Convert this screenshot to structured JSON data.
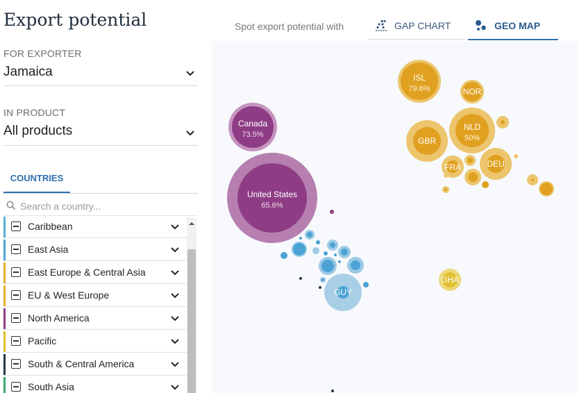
{
  "page": {
    "title": "Export potential"
  },
  "exporter": {
    "label": "FOR EXPORTER",
    "value": "Jamaica"
  },
  "product": {
    "label": "IN PRODUCT",
    "value": "All products"
  },
  "sidebar": {
    "tab_label": "COUNTRIES",
    "search_placeholder": "Search a country...",
    "regions": [
      {
        "label": "Caribbean",
        "color": "#5aaed1"
      },
      {
        "label": "East Asia",
        "color": "#4aa3d4"
      },
      {
        "label": "East Europe & Central Asia",
        "color": "#e0ac2e"
      },
      {
        "label": "EU & West Europe",
        "color": "#e0ac2e"
      },
      {
        "label": "North America",
        "color": "#8e3d85"
      },
      {
        "label": "Pacific",
        "color": "#e0c030"
      },
      {
        "label": "South & Central America",
        "color": "#263746"
      },
      {
        "label": "South Asia",
        "color": "#3aa86b"
      }
    ]
  },
  "view": {
    "prefix": "Spot export potential with",
    "tabs": [
      {
        "label": "GAP CHART",
        "icon": "scatter-dots-icon"
      },
      {
        "label": "GEO MAP",
        "icon": "bubbles-icon"
      }
    ]
  },
  "map": {
    "labeled_bubbles": [
      {
        "code": "Canada",
        "value": "73.5%"
      },
      {
        "code": "United States",
        "value": "65.6%"
      },
      {
        "code": "ISL",
        "value": "79.6%"
      },
      {
        "code": "NOR",
        "value": ""
      },
      {
        "code": "GBR",
        "value": ""
      },
      {
        "code": "NLD",
        "value": "50%"
      },
      {
        "code": "FRA",
        "value": ""
      },
      {
        "code": "DEU",
        "value": ""
      },
      {
        "code": "GUY",
        "value": ""
      },
      {
        "code": "GHA",
        "value": ""
      }
    ]
  }
}
